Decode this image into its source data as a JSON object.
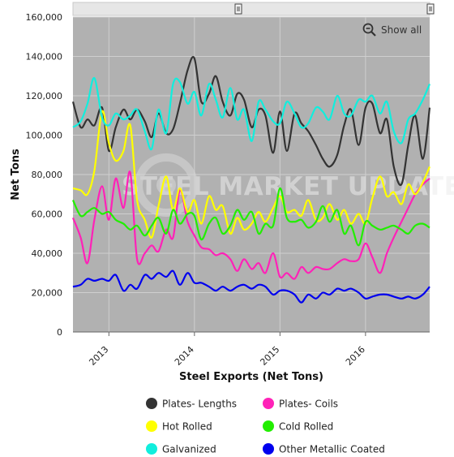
{
  "chart_data": {
    "type": "line",
    "title": "",
    "xlabel": "Steel Exports (Net Tons)",
    "ylabel": "Net Tons",
    "ylim": [
      0,
      160000
    ],
    "yticks": [
      0,
      20000,
      40000,
      60000,
      80000,
      100000,
      120000,
      140000,
      160000
    ],
    "ytick_labels": [
      "0",
      "20,000",
      "40,000",
      "60,000",
      "80,000",
      "100,000",
      "120,000",
      "140,000",
      "160,000"
    ],
    "xlim": [
      2012.58,
      2016.75
    ],
    "xticks": [
      2013,
      2014,
      2015,
      2016
    ],
    "xtick_labels": [
      "2013",
      "2014",
      "2015",
      "2016"
    ],
    "grid": true,
    "legend_placement": "bottom",
    "show_all_label": "Show all",
    "watermark": "STEEL MARKET UPDATE",
    "colors": {
      "plot_background": "#b1b1b1",
      "gridline": "#cfcfcf",
      "navigator": "#e6e6e6"
    },
    "series": [
      {
        "name": "Plates- Lengths",
        "color": "#333333",
        "x": [
          2012.58,
          2012.67,
          2012.75,
          2012.83,
          2012.92,
          2013.0,
          2013.08,
          2013.17,
          2013.25,
          2013.33,
          2013.42,
          2013.5,
          2013.58,
          2013.67,
          2013.75,
          2013.83,
          2013.92,
          2014.0,
          2014.08,
          2014.17,
          2014.25,
          2014.33,
          2014.42,
          2014.5,
          2014.58,
          2014.67,
          2014.75,
          2014.83,
          2014.92,
          2015.0,
          2015.08,
          2015.17,
          2015.25,
          2015.33,
          2015.42,
          2015.5,
          2015.58,
          2015.67,
          2015.75,
          2015.83,
          2015.92,
          2016.0,
          2016.08,
          2016.17,
          2016.25,
          2016.33,
          2016.42,
          2016.5,
          2016.58,
          2016.67,
          2016.75
        ],
        "values": [
          117000,
          104000,
          108000,
          105000,
          114000,
          92000,
          104000,
          113000,
          108000,
          113000,
          107000,
          99000,
          111000,
          101000,
          103000,
          116000,
          133000,
          139000,
          117000,
          121000,
          130000,
          117000,
          110000,
          121000,
          118000,
          104000,
          113000,
          110000,
          91000,
          112000,
          92000,
          111000,
          106000,
          102000,
          95000,
          88000,
          84000,
          90000,
          105000,
          113000,
          95000,
          114000,
          116000,
          101000,
          108000,
          84000,
          75000,
          95000,
          110000,
          88000,
          114000
        ]
      },
      {
        "name": "Plates- Coils",
        "color": "#ff22b8",
        "x": [
          2012.58,
          2012.67,
          2012.75,
          2012.83,
          2012.92,
          2013.0,
          2013.08,
          2013.17,
          2013.25,
          2013.33,
          2013.42,
          2013.5,
          2013.58,
          2013.67,
          2013.75,
          2013.83,
          2013.92,
          2014.0,
          2014.08,
          2014.17,
          2014.25,
          2014.33,
          2014.42,
          2014.5,
          2014.58,
          2014.67,
          2014.75,
          2014.83,
          2014.92,
          2015.0,
          2015.08,
          2015.17,
          2015.25,
          2015.33,
          2015.42,
          2015.5,
          2015.58,
          2015.67,
          2015.75,
          2015.83,
          2015.92,
          2016.0,
          2016.08,
          2016.17,
          2016.25,
          2016.33,
          2016.42,
          2016.5,
          2016.58,
          2016.67,
          2016.75
        ],
        "values": [
          58000,
          48000,
          35000,
          57000,
          74000,
          57000,
          78000,
          63000,
          81000,
          37000,
          40000,
          44000,
          41000,
          52000,
          48000,
          72000,
          56000,
          49000,
          43000,
          42000,
          39000,
          40000,
          37000,
          31000,
          37000,
          32000,
          35000,
          30000,
          40000,
          28000,
          30000,
          27000,
          33000,
          30000,
          33000,
          32000,
          32000,
          35000,
          37000,
          36000,
          37000,
          45000,
          38000,
          30000,
          40000,
          48000,
          56000,
          63000,
          70000,
          75000,
          78000
        ]
      },
      {
        "name": "Hot Rolled",
        "color": "#ffff00",
        "x": [
          2012.58,
          2012.67,
          2012.75,
          2012.83,
          2012.92,
          2013.0,
          2013.08,
          2013.17,
          2013.25,
          2013.33,
          2013.42,
          2013.5,
          2013.58,
          2013.67,
          2013.75,
          2013.83,
          2013.92,
          2014.0,
          2014.08,
          2014.17,
          2014.25,
          2014.33,
          2014.42,
          2014.5,
          2014.58,
          2014.67,
          2014.75,
          2014.83,
          2014.92,
          2015.0,
          2015.08,
          2015.17,
          2015.25,
          2015.33,
          2015.42,
          2015.5,
          2015.58,
          2015.67,
          2015.75,
          2015.83,
          2015.92,
          2016.0,
          2016.08,
          2016.17,
          2016.25,
          2016.33,
          2016.42,
          2016.5,
          2016.58,
          2016.67,
          2016.75
        ],
        "values": [
          73000,
          72000,
          70000,
          82000,
          112000,
          96000,
          87000,
          92000,
          105000,
          67000,
          57000,
          48000,
          64000,
          79000,
          62000,
          73000,
          61000,
          67000,
          55000,
          69000,
          62000,
          64000,
          50000,
          58000,
          52000,
          55000,
          61000,
          56000,
          63000,
          69000,
          61000,
          62000,
          59000,
          67000,
          57000,
          58000,
          65000,
          57000,
          62000,
          55000,
          60000,
          55000,
          68000,
          79000,
          69000,
          71000,
          65000,
          75000,
          70000,
          76000,
          84000
        ]
      },
      {
        "name": "Cold Rolled",
        "color": "#22ee00",
        "x": [
          2012.58,
          2012.67,
          2012.75,
          2012.83,
          2012.92,
          2013.0,
          2013.08,
          2013.17,
          2013.25,
          2013.33,
          2013.42,
          2013.5,
          2013.58,
          2013.67,
          2013.75,
          2013.83,
          2013.92,
          2014.0,
          2014.08,
          2014.17,
          2014.25,
          2014.33,
          2014.42,
          2014.5,
          2014.58,
          2014.67,
          2014.75,
          2014.83,
          2014.92,
          2015.0,
          2015.08,
          2015.17,
          2015.25,
          2015.33,
          2015.42,
          2015.5,
          2015.58,
          2015.67,
          2015.75,
          2015.83,
          2015.92,
          2016.0,
          2016.08,
          2016.17,
          2016.25,
          2016.33,
          2016.42,
          2016.5,
          2016.58,
          2016.67,
          2016.75
        ],
        "values": [
          67000,
          59000,
          61000,
          63000,
          60000,
          61000,
          57000,
          55000,
          52000,
          54000,
          49000,
          54000,
          58000,
          50000,
          62000,
          55000,
          60000,
          59000,
          47000,
          55000,
          58000,
          50000,
          54000,
          62000,
          57000,
          61000,
          50000,
          55000,
          54000,
          73000,
          58000,
          56000,
          57000,
          53000,
          56000,
          64000,
          56000,
          62000,
          50000,
          54000,
          44000,
          56000,
          54000,
          52000,
          53000,
          54000,
          52000,
          50000,
          54000,
          55000,
          53000
        ]
      },
      {
        "name": "Galvanized",
        "color": "#11eedd",
        "x": [
          2012.58,
          2012.67,
          2012.75,
          2012.83,
          2012.92,
          2013.0,
          2013.08,
          2013.17,
          2013.25,
          2013.33,
          2013.42,
          2013.5,
          2013.58,
          2013.67,
          2013.75,
          2013.83,
          2013.92,
          2014.0,
          2014.08,
          2014.17,
          2014.25,
          2014.33,
          2014.42,
          2014.5,
          2014.58,
          2014.67,
          2014.75,
          2014.83,
          2014.92,
          2015.0,
          2015.08,
          2015.17,
          2015.25,
          2015.33,
          2015.42,
          2015.5,
          2015.58,
          2015.67,
          2015.75,
          2015.83,
          2015.92,
          2016.0,
          2016.08,
          2016.17,
          2016.25,
          2016.33,
          2016.42,
          2016.5,
          2016.58,
          2016.67,
          2016.75
        ],
        "values": [
          104000,
          107000,
          116000,
          129000,
          109000,
          105000,
          111000,
          108000,
          110000,
          113000,
          102000,
          93000,
          113000,
          101000,
          126000,
          127000,
          116000,
          122000,
          110000,
          126000,
          118000,
          109000,
          124000,
          108000,
          113000,
          97000,
          117000,
          113000,
          107000,
          106000,
          117000,
          111000,
          104000,
          106000,
          114000,
          112000,
          108000,
          120000,
          111000,
          110000,
          118000,
          117000,
          120000,
          111000,
          117000,
          102000,
          96000,
          108000,
          111000,
          118000,
          126000
        ]
      },
      {
        "name": "Other Metallic Coated",
        "color": "#0000ee",
        "x": [
          2012.58,
          2012.67,
          2012.75,
          2012.83,
          2012.92,
          2013.0,
          2013.08,
          2013.17,
          2013.25,
          2013.33,
          2013.42,
          2013.5,
          2013.58,
          2013.67,
          2013.75,
          2013.83,
          2013.92,
          2014.0,
          2014.08,
          2014.17,
          2014.25,
          2014.33,
          2014.42,
          2014.5,
          2014.58,
          2014.67,
          2014.75,
          2014.83,
          2014.92,
          2015.0,
          2015.08,
          2015.17,
          2015.25,
          2015.33,
          2015.42,
          2015.5,
          2015.58,
          2015.67,
          2015.75,
          2015.83,
          2015.92,
          2016.0,
          2016.08,
          2016.17,
          2016.25,
          2016.33,
          2016.42,
          2016.5,
          2016.58,
          2016.67,
          2016.75
        ],
        "values": [
          23000,
          24000,
          27000,
          26000,
          27000,
          26000,
          29000,
          21000,
          24000,
          22000,
          29000,
          27000,
          30000,
          28000,
          31000,
          24000,
          30000,
          25000,
          25000,
          23000,
          21000,
          23000,
          21000,
          23000,
          24000,
          22000,
          24000,
          23000,
          19000,
          21000,
          21000,
          19000,
          15000,
          19000,
          17000,
          20000,
          19000,
          22000,
          21000,
          22000,
          20000,
          17000,
          18000,
          19000,
          19000,
          18000,
          17000,
          18000,
          17000,
          19000,
          23000
        ]
      }
    ]
  }
}
